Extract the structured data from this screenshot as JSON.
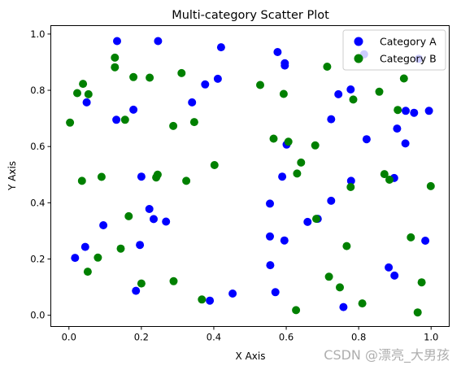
{
  "chart_data": {
    "type": "scatter",
    "title": "Multi-category Scatter Plot",
    "xlabel": "X Axis",
    "ylabel": "Y Axis",
    "xlim": [
      -0.05,
      1.05
    ],
    "ylim": [
      -0.04,
      1.03
    ],
    "xticks": [
      "0.0",
      "0.2",
      "0.4",
      "0.6",
      "0.8",
      "1.0"
    ],
    "yticks": [
      "0.0",
      "0.2",
      "0.4",
      "0.6",
      "0.8",
      "1.0"
    ],
    "grid": false,
    "legend_position": "top-right",
    "series": [
      {
        "name": "Category A",
        "color": "#0000ff",
        "points": [
          [
            0.133,
            0.975
          ],
          [
            0.246,
            0.975
          ],
          [
            0.42,
            0.953
          ],
          [
            0.576,
            0.936
          ],
          [
            0.596,
            0.896
          ],
          [
            0.596,
            0.888
          ],
          [
            0.815,
            0.928
          ],
          [
            0.966,
            0.912
          ],
          [
            0.049,
            0.757
          ],
          [
            0.178,
            0.731
          ],
          [
            0.131,
            0.695
          ],
          [
            0.34,
            0.757
          ],
          [
            0.376,
            0.821
          ],
          [
            0.411,
            0.841
          ],
          [
            0.744,
            0.786
          ],
          [
            0.778,
            0.803
          ],
          [
            0.724,
            0.697
          ],
          [
            0.822,
            0.626
          ],
          [
            0.93,
            0.727
          ],
          [
            0.953,
            0.72
          ],
          [
            0.994,
            0.727
          ],
          [
            0.906,
            0.664
          ],
          [
            0.929,
            0.611
          ],
          [
            0.601,
            0.607
          ],
          [
            0.589,
            0.493
          ],
          [
            0.898,
            0.488
          ],
          [
            0.779,
            0.478
          ],
          [
            0.555,
            0.397
          ],
          [
            0.724,
            0.407
          ],
          [
            0.659,
            0.332
          ],
          [
            0.687,
            0.343
          ],
          [
            0.2,
            0.493
          ],
          [
            0.222,
            0.378
          ],
          [
            0.234,
            0.342
          ],
          [
            0.268,
            0.333
          ],
          [
            0.095,
            0.32
          ],
          [
            0.017,
            0.204
          ],
          [
            0.045,
            0.243
          ],
          [
            0.196,
            0.25
          ],
          [
            0.185,
            0.087
          ],
          [
            0.389,
            0.052
          ],
          [
            0.452,
            0.077
          ],
          [
            0.555,
            0.28
          ],
          [
            0.595,
            0.266
          ],
          [
            0.556,
            0.178
          ],
          [
            0.57,
            0.082
          ],
          [
            0.758,
            0.029
          ],
          [
            0.883,
            0.17
          ],
          [
            0.899,
            0.141
          ],
          [
            0.984,
            0.265
          ]
        ]
      },
      {
        "name": "Category B",
        "color": "#008000",
        "points": [
          [
            0.003,
            0.685
          ],
          [
            0.023,
            0.79
          ],
          [
            0.039,
            0.823
          ],
          [
            0.054,
            0.786
          ],
          [
            0.127,
            0.916
          ],
          [
            0.127,
            0.882
          ],
          [
            0.178,
            0.847
          ],
          [
            0.223,
            0.845
          ],
          [
            0.311,
            0.861
          ],
          [
            0.155,
            0.695
          ],
          [
            0.288,
            0.673
          ],
          [
            0.346,
            0.687
          ],
          [
            0.528,
            0.819
          ],
          [
            0.593,
            0.787
          ],
          [
            0.713,
            0.884
          ],
          [
            0.785,
            0.767
          ],
          [
            0.857,
            0.795
          ],
          [
            0.925,
            0.842
          ],
          [
            0.908,
            0.73
          ],
          [
            0.565,
            0.628
          ],
          [
            0.606,
            0.617
          ],
          [
            0.641,
            0.543
          ],
          [
            0.68,
            0.604
          ],
          [
            0.63,
            0.504
          ],
          [
            0.871,
            0.502
          ],
          [
            0.885,
            0.482
          ],
          [
            0.778,
            0.456
          ],
          [
            0.999,
            0.459
          ],
          [
            0.683,
            0.343
          ],
          [
            0.944,
            0.277
          ],
          [
            0.036,
            0.478
          ],
          [
            0.09,
            0.492
          ],
          [
            0.241,
            0.49
          ],
          [
            0.245,
            0.5
          ],
          [
            0.324,
            0.478
          ],
          [
            0.402,
            0.534
          ],
          [
            0.165,
            0.352
          ],
          [
            0.143,
            0.237
          ],
          [
            0.08,
            0.205
          ],
          [
            0.052,
            0.155
          ],
          [
            0.2,
            0.113
          ],
          [
            0.289,
            0.121
          ],
          [
            0.367,
            0.056
          ],
          [
            0.718,
            0.137
          ],
          [
            0.748,
            0.099
          ],
          [
            0.767,
            0.246
          ],
          [
            0.81,
            0.042
          ],
          [
            0.627,
            0.018
          ],
          [
            0.963,
            0.01
          ],
          [
            0.974,
            0.117
          ]
        ]
      }
    ]
  },
  "watermark": "CSDN @漂亮_大男孩"
}
